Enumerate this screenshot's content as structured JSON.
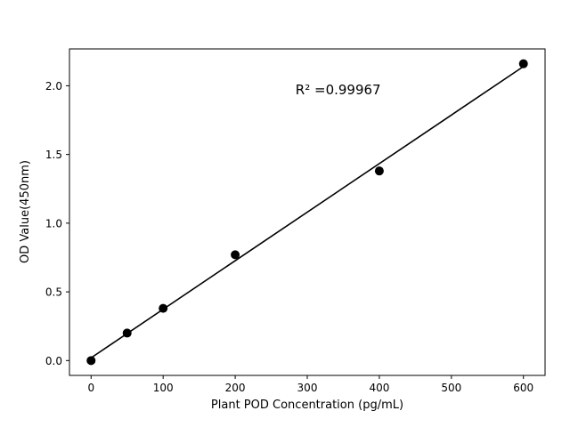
{
  "chart_data": {
    "type": "scatter",
    "title": "",
    "xlabel": "Plant POD Concentration (pg/mL)",
    "ylabel": "OD Value(450nm)",
    "annotation": "R² =0.99967",
    "x": [
      0,
      50,
      100,
      200,
      400,
      600
    ],
    "y": [
      0.0,
      0.2,
      0.38,
      0.77,
      1.38,
      2.16
    ],
    "xticks": [
      0,
      100,
      200,
      300,
      400,
      500,
      600
    ],
    "xtick_labels": [
      "0",
      "100",
      "200",
      "300",
      "400",
      "500",
      "600"
    ],
    "yticks": [
      0.0,
      0.5,
      1.0,
      1.5,
      2.0
    ],
    "ytick_labels": [
      "0.0",
      "0.5",
      "1.0",
      "1.5",
      "2.0"
    ],
    "xlim": [
      -30,
      630
    ],
    "ylim": [
      -0.108,
      2.268
    ],
    "grid": false,
    "legend": false,
    "fit_line": true,
    "marker_color": "#000000",
    "line_color": "#000000",
    "background": "#ffffff",
    "annotation_pos": {
      "xfrac": 0.565,
      "yfrac": 0.875
    }
  }
}
